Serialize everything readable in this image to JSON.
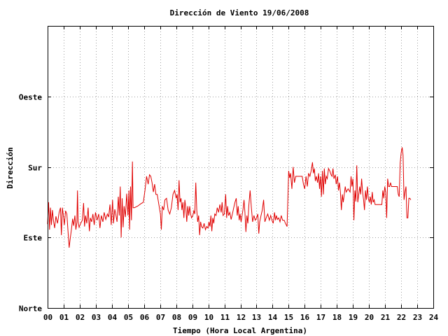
{
  "chart_data": {
    "type": "line",
    "title": "Dirección de Viento 19/06/2008",
    "xlabel": "Tiempo (Hora Local Argentina)",
    "ylabel": "Dirección",
    "xlim": [
      0,
      24
    ],
    "ylim": [
      0,
      360
    ],
    "grid": true,
    "x_ticks": [
      "00",
      "01",
      "02",
      "03",
      "04",
      "05",
      "06",
      "07",
      "08",
      "09",
      "10",
      "11",
      "12",
      "13",
      "14",
      "15",
      "16",
      "17",
      "18",
      "19",
      "20",
      "21",
      "22",
      "23",
      "24"
    ],
    "y_ticks": [
      {
        "value": 0,
        "label": "Norte"
      },
      {
        "value": 90,
        "label": "Este"
      },
      {
        "value": 180,
        "label": "Sur"
      },
      {
        "value": 270,
        "label": "Oeste"
      }
    ],
    "series": [
      {
        "color": "#e00000",
        "points": [
          [
            0.0,
            107
          ],
          [
            0.06,
            135
          ],
          [
            0.12,
            100
          ],
          [
            0.18,
            128
          ],
          [
            0.24,
            106
          ],
          [
            0.3,
            125
          ],
          [
            0.36,
            112
          ],
          [
            0.44,
            102
          ],
          [
            0.52,
            117
          ],
          [
            0.62,
            108
          ],
          [
            0.72,
            122
          ],
          [
            0.8,
            128
          ],
          [
            0.86,
            93
          ],
          [
            0.92,
            128
          ],
          [
            0.98,
            118
          ],
          [
            1.04,
            106
          ],
          [
            1.12,
            124
          ],
          [
            1.2,
            120
          ],
          [
            1.28,
            95
          ],
          [
            1.34,
            77
          ],
          [
            1.4,
            87
          ],
          [
            1.48,
            100
          ],
          [
            1.56,
            114
          ],
          [
            1.62,
            105
          ],
          [
            1.7,
            118
          ],
          [
            1.76,
            100
          ],
          [
            1.82,
            109
          ],
          [
            1.86,
            150
          ],
          [
            1.9,
            110
          ],
          [
            1.96,
            103
          ],
          [
            2.06,
            108
          ],
          [
            2.16,
            112
          ],
          [
            2.24,
            134
          ],
          [
            2.3,
            104
          ],
          [
            2.36,
            118
          ],
          [
            2.44,
            108
          ],
          [
            2.52,
            128
          ],
          [
            2.6,
            98
          ],
          [
            2.66,
            115
          ],
          [
            2.74,
            110
          ],
          [
            2.82,
            120
          ],
          [
            2.9,
            106
          ],
          [
            2.98,
            122
          ],
          [
            3.08,
            112
          ],
          [
            3.18,
            120
          ],
          [
            3.26,
            102
          ],
          [
            3.34,
            118
          ],
          [
            3.44,
            110
          ],
          [
            3.52,
            122
          ],
          [
            3.62,
            113
          ],
          [
            3.72,
            120
          ],
          [
            3.8,
            116
          ],
          [
            3.88,
            132
          ],
          [
            3.96,
            106
          ],
          [
            4.04,
            138
          ],
          [
            4.1,
            108
          ],
          [
            4.18,
            126
          ],
          [
            4.24,
            120
          ],
          [
            4.32,
            110
          ],
          [
            4.4,
            142
          ],
          [
            4.46,
            118
          ],
          [
            4.52,
            155
          ],
          [
            4.58,
            90
          ],
          [
            4.64,
            140
          ],
          [
            4.7,
            103
          ],
          [
            4.76,
            130
          ],
          [
            4.84,
            116
          ],
          [
            4.92,
            146
          ],
          [
            5.0,
            118
          ],
          [
            5.06,
            150
          ],
          [
            5.1,
            100
          ],
          [
            5.16,
            155
          ],
          [
            5.22,
            112
          ],
          [
            5.28,
            187
          ],
          [
            5.32,
            128
          ],
          [
            5.4,
            128
          ],
          [
            5.6,
            130
          ],
          [
            5.8,
            133
          ],
          [
            5.96,
            135
          ],
          [
            6.06,
            150
          ],
          [
            6.16,
            168
          ],
          [
            6.26,
            158
          ],
          [
            6.34,
            170
          ],
          [
            6.42,
            168
          ],
          [
            6.5,
            160
          ],
          [
            6.58,
            148
          ],
          [
            6.66,
            158
          ],
          [
            6.74,
            145
          ],
          [
            6.82,
            145
          ],
          [
            6.9,
            135
          ],
          [
            7.02,
            120
          ],
          [
            7.08,
            100
          ],
          [
            7.14,
            130
          ],
          [
            7.22,
            125
          ],
          [
            7.3,
            138
          ],
          [
            7.4,
            140
          ],
          [
            7.5,
            125
          ],
          [
            7.6,
            120
          ],
          [
            7.7,
            128
          ],
          [
            7.8,
            145
          ],
          [
            7.9,
            150
          ],
          [
            8.0,
            140
          ],
          [
            8.06,
            145
          ],
          [
            8.12,
            125
          ],
          [
            8.18,
            163
          ],
          [
            8.24,
            135
          ],
          [
            8.3,
            140
          ],
          [
            8.36,
            125
          ],
          [
            8.42,
            135
          ],
          [
            8.48,
            115
          ],
          [
            8.54,
            138
          ],
          [
            8.6,
            128
          ],
          [
            8.66,
            110
          ],
          [
            8.72,
            130
          ],
          [
            8.78,
            118
          ],
          [
            8.84,
            130
          ],
          [
            8.9,
            120
          ],
          [
            8.96,
            115
          ],
          [
            9.04,
            118
          ],
          [
            9.1,
            124
          ],
          [
            9.16,
            120
          ],
          [
            9.22,
            160
          ],
          [
            9.28,
            125
          ],
          [
            9.34,
            110
          ],
          [
            9.4,
            118
          ],
          [
            9.46,
            93
          ],
          [
            9.52,
            110
          ],
          [
            9.58,
            104
          ],
          [
            9.66,
            102
          ],
          [
            9.74,
            108
          ],
          [
            9.82,
            100
          ],
          [
            9.9,
            104
          ],
          [
            9.98,
            102
          ],
          [
            10.04,
            110
          ],
          [
            10.1,
            104
          ],
          [
            10.16,
            118
          ],
          [
            10.22,
            98
          ],
          [
            10.28,
            115
          ],
          [
            10.34,
            108
          ],
          [
            10.4,
            120
          ],
          [
            10.48,
            118
          ],
          [
            10.56,
            128
          ],
          [
            10.64,
            122
          ],
          [
            10.72,
            132
          ],
          [
            10.8,
            122
          ],
          [
            10.86,
            135
          ],
          [
            10.92,
            118
          ],
          [
            11.0,
            120
          ],
          [
            11.08,
            145
          ],
          [
            11.14,
            115
          ],
          [
            11.2,
            130
          ],
          [
            11.26,
            118
          ],
          [
            11.34,
            122
          ],
          [
            11.42,
            113
          ],
          [
            11.5,
            120
          ],
          [
            11.58,
            128
          ],
          [
            11.66,
            135
          ],
          [
            11.74,
            140
          ],
          [
            11.8,
            118
          ],
          [
            11.86,
            130
          ],
          [
            11.92,
            112
          ],
          [
            11.98,
            120
          ],
          [
            12.04,
            110
          ],
          [
            12.1,
            118
          ],
          [
            12.16,
            126
          ],
          [
            12.22,
            138
          ],
          [
            12.28,
            122
          ],
          [
            12.34,
            97
          ],
          [
            12.4,
            118
          ],
          [
            12.46,
            108
          ],
          [
            12.52,
            130
          ],
          [
            12.6,
            150
          ],
          [
            12.68,
            128
          ],
          [
            12.76,
            110
          ],
          [
            12.84,
            118
          ],
          [
            12.92,
            112
          ],
          [
            13.0,
            115
          ],
          [
            13.08,
            120
          ],
          [
            13.14,
            95
          ],
          [
            13.2,
            110
          ],
          [
            13.28,
            118
          ],
          [
            13.36,
            125
          ],
          [
            13.44,
            138
          ],
          [
            13.52,
            110
          ],
          [
            13.6,
            115
          ],
          [
            13.7,
            120
          ],
          [
            13.8,
            112
          ],
          [
            13.88,
            118
          ],
          [
            13.96,
            112
          ],
          [
            14.04,
            108
          ],
          [
            14.12,
            122
          ],
          [
            14.18,
            112
          ],
          [
            14.24,
            118
          ],
          [
            14.3,
            113
          ],
          [
            14.38,
            115
          ],
          [
            14.46,
            110
          ],
          [
            14.54,
            118
          ],
          [
            14.62,
            112
          ],
          [
            14.72,
            112
          ],
          [
            14.8,
            108
          ],
          [
            14.9,
            104
          ],
          [
            15.0,
            175
          ],
          [
            15.06,
            166
          ],
          [
            15.12,
            172
          ],
          [
            15.2,
            152
          ],
          [
            15.28,
            180
          ],
          [
            15.36,
            160
          ],
          [
            15.44,
            168
          ],
          [
            15.52,
            168
          ],
          [
            15.6,
            168
          ],
          [
            15.68,
            168
          ],
          [
            15.76,
            168
          ],
          [
            15.84,
            168
          ],
          [
            15.92,
            158
          ],
          [
            16.0,
            152
          ],
          [
            16.08,
            168
          ],
          [
            16.16,
            155
          ],
          [
            16.24,
            172
          ],
          [
            16.32,
            168
          ],
          [
            16.4,
            175
          ],
          [
            16.48,
            186
          ],
          [
            16.54,
            172
          ],
          [
            16.6,
            178
          ],
          [
            16.66,
            162
          ],
          [
            16.72,
            168
          ],
          [
            16.8,
            160
          ],
          [
            16.86,
            172
          ],
          [
            16.92,
            152
          ],
          [
            16.98,
            168
          ],
          [
            17.04,
            142
          ],
          [
            17.1,
            175
          ],
          [
            17.16,
            145
          ],
          [
            17.22,
            178
          ],
          [
            17.28,
            158
          ],
          [
            17.34,
            168
          ],
          [
            17.4,
            165
          ],
          [
            17.48,
            178
          ],
          [
            17.56,
            175
          ],
          [
            17.64,
            170
          ],
          [
            17.7,
            168
          ],
          [
            17.76,
            178
          ],
          [
            17.82,
            165
          ],
          [
            17.9,
            170
          ],
          [
            17.96,
            158
          ],
          [
            18.04,
            168
          ],
          [
            18.1,
            150
          ],
          [
            18.16,
            160
          ],
          [
            18.22,
            148
          ],
          [
            18.28,
            125
          ],
          [
            18.34,
            145
          ],
          [
            18.4,
            135
          ],
          [
            18.46,
            145
          ],
          [
            18.52,
            155
          ],
          [
            18.58,
            148
          ],
          [
            18.64,
            150
          ],
          [
            18.7,
            152
          ],
          [
            18.76,
            150
          ],
          [
            18.82,
            148
          ],
          [
            18.88,
            168
          ],
          [
            18.94,
            155
          ],
          [
            19.0,
            165
          ],
          [
            19.06,
            112
          ],
          [
            19.12,
            150
          ],
          [
            19.18,
            136
          ],
          [
            19.24,
            182
          ],
          [
            19.3,
            135
          ],
          [
            19.36,
            145
          ],
          [
            19.42,
            155
          ],
          [
            19.48,
            145
          ],
          [
            19.54,
            165
          ],
          [
            19.6,
            148
          ],
          [
            19.66,
            138
          ],
          [
            19.72,
            125
          ],
          [
            19.78,
            150
          ],
          [
            19.84,
            138
          ],
          [
            19.9,
            155
          ],
          [
            19.96,
            140
          ],
          [
            20.02,
            135
          ],
          [
            20.08,
            142
          ],
          [
            20.14,
            132
          ],
          [
            20.2,
            148
          ],
          [
            20.26,
            135
          ],
          [
            20.32,
            138
          ],
          [
            20.38,
            132
          ],
          [
            20.44,
            132
          ],
          [
            20.5,
            132
          ],
          [
            20.56,
            132
          ],
          [
            20.62,
            132
          ],
          [
            20.68,
            132
          ],
          [
            20.74,
            132
          ],
          [
            20.8,
            132
          ],
          [
            20.86,
            150
          ],
          [
            20.92,
            140
          ],
          [
            20.98,
            155
          ],
          [
            21.04,
            148
          ],
          [
            21.1,
            115
          ],
          [
            21.16,
            165
          ],
          [
            21.22,
            155
          ],
          [
            21.28,
            155
          ],
          [
            21.34,
            160
          ],
          [
            21.4,
            155
          ],
          [
            21.46,
            155
          ],
          [
            21.52,
            155
          ],
          [
            21.58,
            155
          ],
          [
            21.64,
            155
          ],
          [
            21.7,
            155
          ],
          [
            21.76,
            155
          ],
          [
            21.82,
            145
          ],
          [
            21.88,
            142
          ],
          [
            21.94,
            185
          ],
          [
            22.0,
            198
          ],
          [
            22.06,
            205
          ],
          [
            22.12,
            195
          ],
          [
            22.18,
            138
          ],
          [
            22.24,
            148
          ],
          [
            22.3,
            155
          ],
          [
            22.36,
            115
          ],
          [
            22.42,
            115
          ],
          [
            22.48,
            140
          ],
          [
            22.54,
            140
          ],
          [
            22.6,
            138
          ]
        ]
      }
    ]
  }
}
